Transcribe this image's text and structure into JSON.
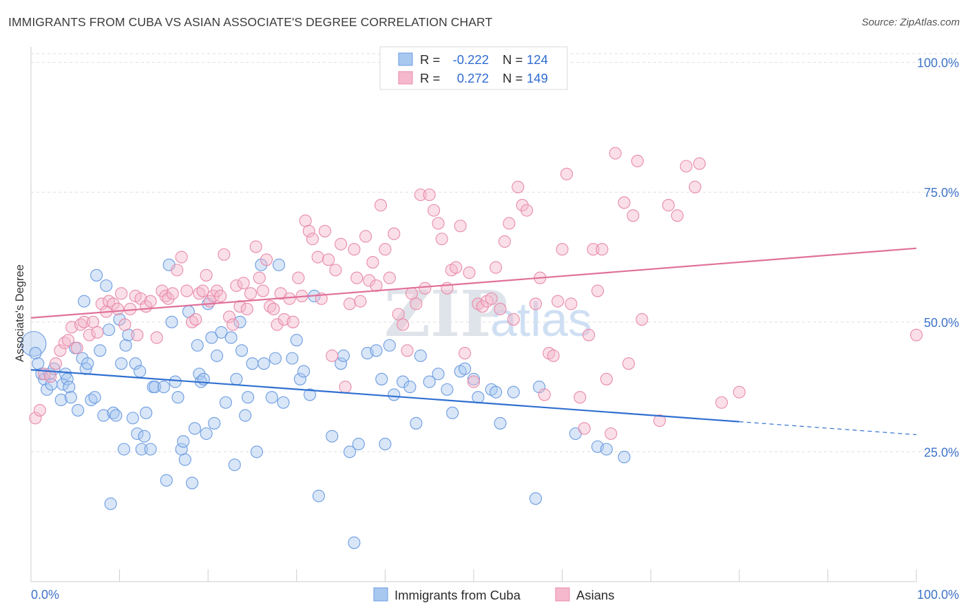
{
  "header": {
    "title": "IMMIGRANTS FROM CUBA VS ASIAN ASSOCIATE'S DEGREE CORRELATION CHART",
    "source": "Source: ZipAtlas.com"
  },
  "watermark": {
    "zip": "ZIP",
    "atlas": "atlas"
  },
  "legend": {
    "rows": [
      {
        "r_label": "R =",
        "r_value": "-0.222",
        "n_label": "N =",
        "n_value": "124",
        "color": "#a8c8f0",
        "stroke": "#6b9be0"
      },
      {
        "r_label": "R =",
        "r_value": "0.272",
        "n_label": "N =",
        "n_value": "149",
        "color": "#f5b8cc",
        "stroke": "#e88aa8"
      }
    ]
  },
  "bottom_legend": [
    {
      "label": "Immigrants from Cuba",
      "color": "#a8c8f0",
      "stroke": "#6b9be0"
    },
    {
      "label": "Asians",
      "color": "#f5b8cc",
      "stroke": "#e88aa8"
    }
  ],
  "chart_data": {
    "type": "scatter",
    "title": "IMMIGRANTS FROM CUBA VS ASIAN ASSOCIATE'S DEGREE CORRELATION CHART",
    "xlabel": "",
    "ylabel": "Associate's Degree",
    "xlim": [
      0,
      100
    ],
    "ylim": [
      0,
      103
    ],
    "x_tick_labels": [
      "0.0%",
      "100.0%"
    ],
    "y_ticks": [
      25,
      50,
      75,
      100
    ],
    "y_tick_labels": [
      "25.0%",
      "50.0%",
      "75.0%",
      "100.0%"
    ],
    "grid": true,
    "legend_position": "top-center",
    "colors": {
      "blue_series": "#6b9be0",
      "pink_series": "#e88aa8",
      "blue_line": "#2f6fd0",
      "pink_line": "#e0709a"
    },
    "series": [
      {
        "name": "Immigrants from Cuba",
        "R": -0.222,
        "N": 124,
        "trend": {
          "x": [
            0,
            80
          ],
          "y": [
            40.8,
            30.8
          ],
          "dashed_extension": {
            "x": [
              80,
              100
            ],
            "y": [
              30.8,
              28.3
            ]
          }
        },
        "points": [
          [
            0.3,
            45.8
          ],
          [
            0.5,
            44
          ],
          [
            0.8,
            42
          ],
          [
            1.2,
            40
          ],
          [
            1.5,
            39
          ],
          [
            1.8,
            37
          ],
          [
            2.1,
            40
          ],
          [
            2.3,
            38
          ],
          [
            2.6,
            41
          ],
          [
            3.4,
            35
          ],
          [
            3.6,
            38
          ],
          [
            3.9,
            40
          ],
          [
            4.1,
            39
          ],
          [
            4.3,
            37.5
          ],
          [
            4.5,
            35.5
          ],
          [
            5.0,
            45
          ],
          [
            5.3,
            33
          ],
          [
            5.8,
            43
          ],
          [
            6.0,
            54
          ],
          [
            6.2,
            41
          ],
          [
            6.4,
            42
          ],
          [
            6.8,
            35
          ],
          [
            7.2,
            35.5
          ],
          [
            7.4,
            59
          ],
          [
            7.8,
            44.5
          ],
          [
            8.2,
            32
          ],
          [
            8.5,
            57
          ],
          [
            8.8,
            48.5
          ],
          [
            9.0,
            15
          ],
          [
            9.3,
            32.5
          ],
          [
            9.6,
            32
          ],
          [
            10.0,
            50.5
          ],
          [
            10.2,
            42
          ],
          [
            10.5,
            25.5
          ],
          [
            10.7,
            45.5
          ],
          [
            11.0,
            47.5
          ],
          [
            11.5,
            31.5
          ],
          [
            11.8,
            42
          ],
          [
            12.0,
            28.5
          ],
          [
            12.3,
            40.5
          ],
          [
            12.5,
            25.5
          ],
          [
            12.8,
            28
          ],
          [
            13.0,
            32.5
          ],
          [
            13.5,
            25.5
          ],
          [
            13.8,
            37.5
          ],
          [
            14.0,
            37.5
          ],
          [
            15.0,
            37.5
          ],
          [
            15.3,
            19.5
          ],
          [
            15.6,
            61
          ],
          [
            15.9,
            50
          ],
          [
            16.3,
            38.5
          ],
          [
            16.6,
            35.5
          ],
          [
            17.0,
            25.5
          ],
          [
            17.2,
            27
          ],
          [
            17.4,
            23.5
          ],
          [
            17.8,
            52
          ],
          [
            18.2,
            19
          ],
          [
            18.5,
            29.5
          ],
          [
            18.8,
            45.5
          ],
          [
            19.0,
            40
          ],
          [
            19.2,
            38.5
          ],
          [
            19.5,
            39
          ],
          [
            19.8,
            28.5
          ],
          [
            20.0,
            53.5
          ],
          [
            20.4,
            47
          ],
          [
            20.7,
            30.5
          ],
          [
            21.0,
            43.5
          ],
          [
            21.5,
            48
          ],
          [
            22.0,
            34.5
          ],
          [
            22.6,
            47
          ],
          [
            23.0,
            22.5
          ],
          [
            23.2,
            39
          ],
          [
            23.6,
            50
          ],
          [
            23.8,
            44.5
          ],
          [
            24.2,
            32
          ],
          [
            24.5,
            35.5
          ],
          [
            25.0,
            42
          ],
          [
            25.5,
            25
          ],
          [
            26.0,
            61
          ],
          [
            26.3,
            42
          ],
          [
            27.2,
            35.5
          ],
          [
            27.6,
            43
          ],
          [
            28.0,
            61
          ],
          [
            28.5,
            34.5
          ],
          [
            29.5,
            43
          ],
          [
            30.0,
            46.5
          ],
          [
            30.4,
            39
          ],
          [
            30.8,
            40.5
          ],
          [
            31.5,
            36
          ],
          [
            32.0,
            55
          ],
          [
            32.5,
            16.5
          ],
          [
            34.0,
            28
          ],
          [
            35.0,
            42
          ],
          [
            35.3,
            43.5
          ],
          [
            36.0,
            25
          ],
          [
            36.5,
            7.5
          ],
          [
            37.0,
            26.5
          ],
          [
            38.0,
            44
          ],
          [
            39.0,
            44.5
          ],
          [
            39.6,
            39
          ],
          [
            40.0,
            26.5
          ],
          [
            40.5,
            45.5
          ],
          [
            41.0,
            36
          ],
          [
            42.0,
            38.5
          ],
          [
            42.8,
            37.5
          ],
          [
            43.5,
            30.5
          ],
          [
            44.0,
            43.5
          ],
          [
            45.0,
            38.5
          ],
          [
            46.0,
            40
          ],
          [
            47.0,
            37
          ],
          [
            47.6,
            32.5
          ],
          [
            48.5,
            40.5
          ],
          [
            49.0,
            41
          ],
          [
            50.0,
            39
          ],
          [
            50.5,
            35.5
          ],
          [
            52.0,
            37
          ],
          [
            52.5,
            36.5
          ],
          [
            53.0,
            30.5
          ],
          [
            54.5,
            36.5
          ],
          [
            57.0,
            16
          ],
          [
            57.4,
            37.5
          ],
          [
            61.5,
            28.5
          ],
          [
            64.0,
            26
          ],
          [
            65.0,
            25.5
          ],
          [
            67.0,
            24
          ]
        ]
      },
      {
        "name": "Asians",
        "R": 0.272,
        "N": 149,
        "trend": {
          "x": [
            0,
            100
          ],
          "y": [
            50.8,
            64.2
          ]
        },
        "points": [
          [
            0.5,
            31.5
          ],
          [
            1.0,
            33
          ],
          [
            1.5,
            40
          ],
          [
            2.2,
            39.5
          ],
          [
            2.8,
            42
          ],
          [
            3.3,
            44.5
          ],
          [
            3.8,
            46
          ],
          [
            4.2,
            46.5
          ],
          [
            4.6,
            49
          ],
          [
            5.2,
            45
          ],
          [
            5.6,
            49.5
          ],
          [
            6.0,
            50
          ],
          [
            6.6,
            47.5
          ],
          [
            7.0,
            50
          ],
          [
            7.5,
            48
          ],
          [
            8.0,
            53.5
          ],
          [
            8.5,
            52
          ],
          [
            8.8,
            54
          ],
          [
            9.3,
            53.5
          ],
          [
            9.8,
            52.5
          ],
          [
            10.2,
            55.5
          ],
          [
            10.6,
            49.5
          ],
          [
            11.2,
            52.5
          ],
          [
            11.8,
            55
          ],
          [
            12.0,
            47.5
          ],
          [
            12.4,
            54.5
          ],
          [
            13.0,
            53
          ],
          [
            13.5,
            54
          ],
          [
            14.2,
            47
          ],
          [
            14.8,
            56
          ],
          [
            15.2,
            55
          ],
          [
            15.5,
            54.5
          ],
          [
            16.0,
            55.5
          ],
          [
            16.5,
            60
          ],
          [
            17.0,
            62.5
          ],
          [
            17.6,
            56
          ],
          [
            18.2,
            50
          ],
          [
            18.6,
            50.5
          ],
          [
            19.0,
            55.5
          ],
          [
            19.4,
            56
          ],
          [
            19.8,
            59
          ],
          [
            20.2,
            54
          ],
          [
            20.6,
            55
          ],
          [
            21.0,
            56
          ],
          [
            21.4,
            55
          ],
          [
            21.8,
            63
          ],
          [
            22.4,
            51
          ],
          [
            22.8,
            49.5
          ],
          [
            23.2,
            57
          ],
          [
            23.6,
            53
          ],
          [
            24.0,
            57.5
          ],
          [
            24.4,
            52.5
          ],
          [
            24.8,
            55.5
          ],
          [
            25.4,
            64.5
          ],
          [
            25.8,
            58.5
          ],
          [
            26.2,
            56
          ],
          [
            26.6,
            62
          ],
          [
            27.0,
            53
          ],
          [
            27.4,
            52.5
          ],
          [
            27.8,
            49.5
          ],
          [
            28.2,
            55.5
          ],
          [
            28.6,
            50.5
          ],
          [
            29.2,
            54.5
          ],
          [
            29.6,
            50
          ],
          [
            30.2,
            58.5
          ],
          [
            30.6,
            55
          ],
          [
            31.0,
            69.5
          ],
          [
            31.4,
            67.5
          ],
          [
            31.8,
            66
          ],
          [
            32.4,
            62.5
          ],
          [
            32.8,
            54.5
          ],
          [
            33.2,
            67.5
          ],
          [
            33.6,
            62
          ],
          [
            34.0,
            43.5
          ],
          [
            34.4,
            60
          ],
          [
            35.0,
            65
          ],
          [
            35.5,
            37.5
          ],
          [
            36.0,
            53.5
          ],
          [
            36.5,
            64
          ],
          [
            36.8,
            58.5
          ],
          [
            37.2,
            54
          ],
          [
            37.8,
            66.5
          ],
          [
            38.2,
            58
          ],
          [
            38.6,
            61.5
          ],
          [
            39.0,
            57
          ],
          [
            39.5,
            72.5
          ],
          [
            40.0,
            64
          ],
          [
            40.5,
            58.5
          ],
          [
            41.0,
            67
          ],
          [
            41.5,
            51.5
          ],
          [
            42.0,
            49.5
          ],
          [
            42.5,
            44.5
          ],
          [
            43.0,
            55.5
          ],
          [
            43.5,
            53.5
          ],
          [
            44.0,
            74.5
          ],
          [
            44.5,
            56.5
          ],
          [
            45.0,
            74.5
          ],
          [
            45.5,
            71.5
          ],
          [
            46.0,
            69
          ],
          [
            46.4,
            66
          ],
          [
            47.0,
            56.5
          ],
          [
            47.5,
            60
          ],
          [
            48.0,
            60.5
          ],
          [
            48.5,
            68.5
          ],
          [
            49.0,
            44
          ],
          [
            49.5,
            59.5
          ],
          [
            50.0,
            38.5
          ],
          [
            50.5,
            53.5
          ],
          [
            51.0,
            53
          ],
          [
            51.5,
            54
          ],
          [
            52.0,
            54.5
          ],
          [
            52.5,
            60.5
          ],
          [
            53.0,
            52.5
          ],
          [
            53.5,
            65.5
          ],
          [
            54.0,
            69
          ],
          [
            54.5,
            50.5
          ],
          [
            55.0,
            76
          ],
          [
            55.5,
            72.5
          ],
          [
            56.0,
            71.5
          ],
          [
            57.0,
            53.5
          ],
          [
            57.5,
            58.5
          ],
          [
            58.0,
            36
          ],
          [
            58.5,
            44
          ],
          [
            59.0,
            43.5
          ],
          [
            59.5,
            54
          ],
          [
            60.0,
            64
          ],
          [
            60.5,
            78.5
          ],
          [
            61.0,
            53.5
          ],
          [
            62.0,
            35.5
          ],
          [
            62.5,
            29.5
          ],
          [
            63.0,
            47.5
          ],
          [
            63.5,
            64
          ],
          [
            64.0,
            56
          ],
          [
            64.5,
            64
          ],
          [
            65.0,
            39
          ],
          [
            65.5,
            28.5
          ],
          [
            66.0,
            82.5
          ],
          [
            67.0,
            73
          ],
          [
            67.5,
            42
          ],
          [
            68.0,
            70.5
          ],
          [
            68.5,
            81
          ],
          [
            69.0,
            50.5
          ],
          [
            71.0,
            31
          ],
          [
            72.0,
            72.5
          ],
          [
            73.0,
            70.5
          ],
          [
            74.0,
            80
          ],
          [
            75.0,
            76
          ],
          [
            75.5,
            80.5
          ],
          [
            78.0,
            34.5
          ],
          [
            80.0,
            36.5
          ],
          [
            100.0,
            47.5
          ]
        ]
      }
    ]
  }
}
